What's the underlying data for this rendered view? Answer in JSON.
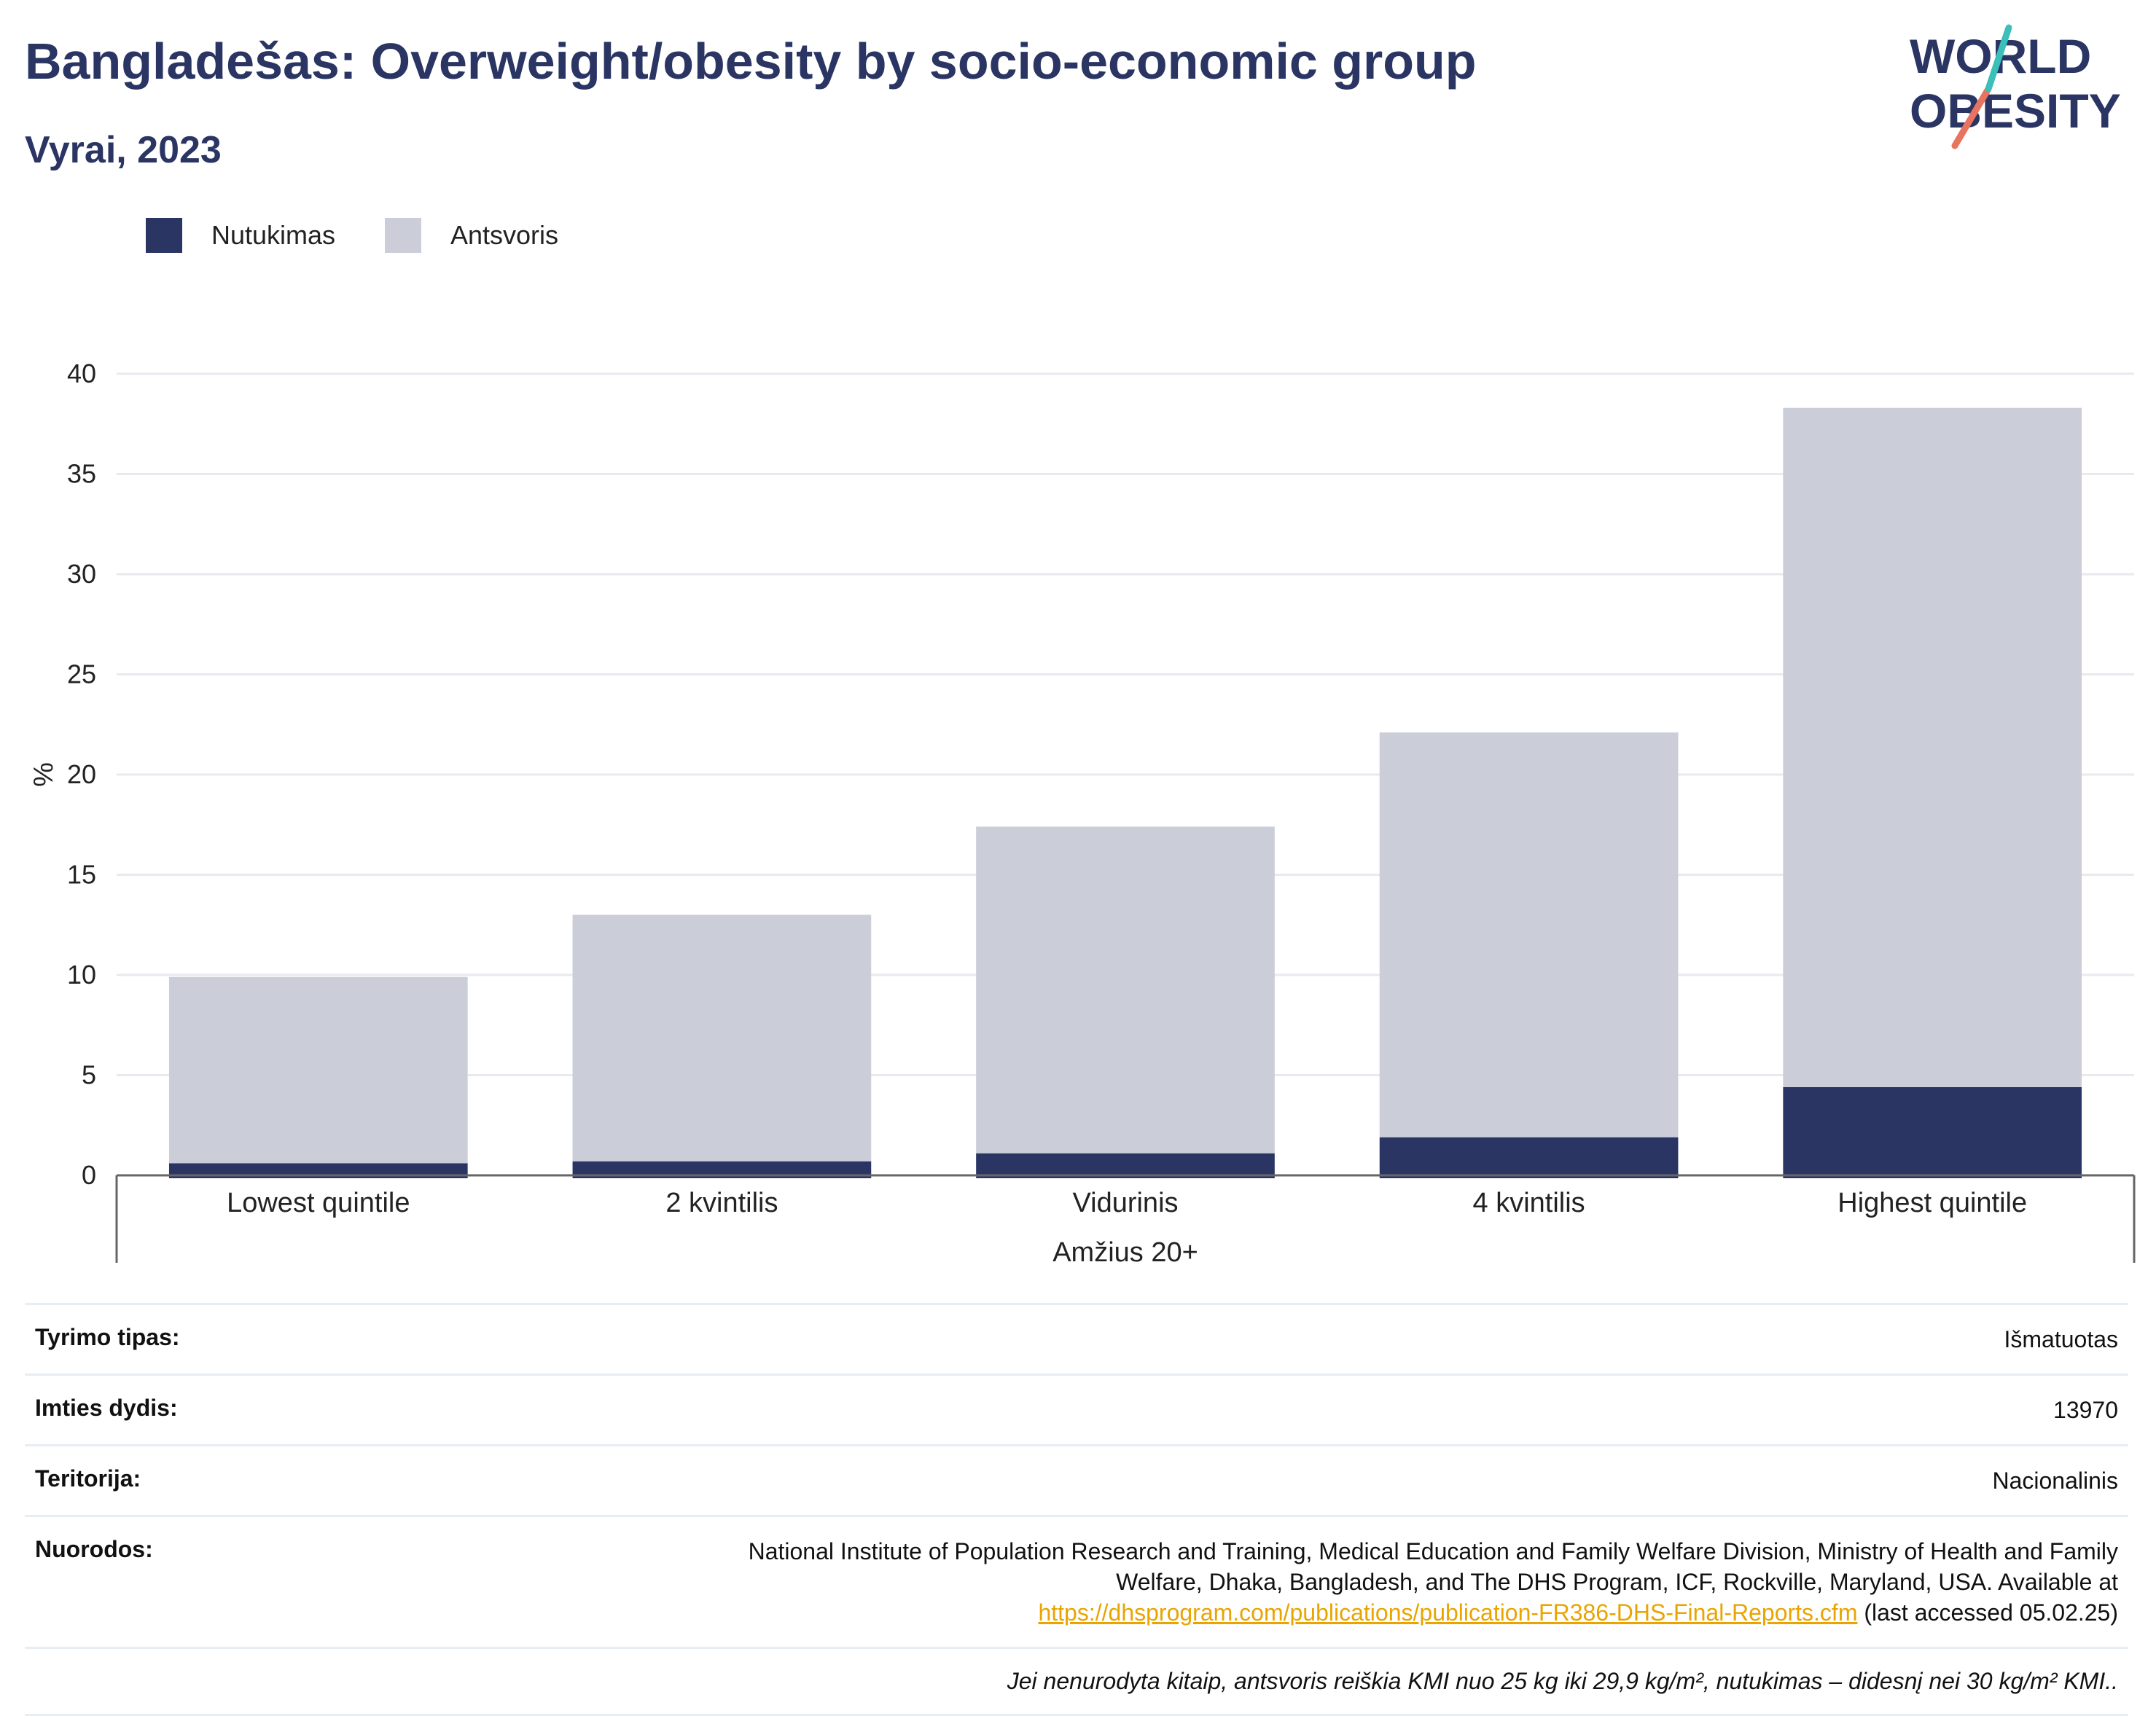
{
  "header": {
    "title": "Bangladešas: Overweight/obesity by socio-economic group",
    "subtitle": "Vyrai, 2023"
  },
  "logo": {
    "line1": "WORLD",
    "line2": "OBESITY"
  },
  "colors": {
    "obesity": "#2a3563",
    "overweight": "#cbcdd9",
    "title": "#2a3563",
    "link": "#e9a400"
  },
  "chart_data": {
    "type": "bar",
    "stacked": true,
    "categories": [
      "Lowest quintile",
      "2 kvintilis",
      "Vidurinis",
      "4 kvintilis",
      "Highest quintile"
    ],
    "series": [
      {
        "name": "Nutukimas",
        "values": [
          0.6,
          0.7,
          1.1,
          1.9,
          4.4
        ]
      },
      {
        "name": "Antsvoris",
        "values": [
          9.3,
          12.3,
          16.3,
          20.2,
          33.9
        ]
      }
    ],
    "xlabel": "Amžius 20+",
    "ylabel": "%",
    "ylim": [
      0,
      40
    ],
    "yticks": [
      0,
      5,
      10,
      15,
      20,
      25,
      30,
      35,
      40
    ],
    "grid": true,
    "legend_position": "top-left"
  },
  "meta": {
    "survey_type_label": "Tyrimo tipas:",
    "survey_type_value": "Išmatuotas",
    "sample_size_label": "Imties dydis:",
    "sample_size_value": "13970",
    "territory_label": "Teritorija:",
    "territory_value": "Nacionalinis",
    "references_label": "Nuorodos:",
    "references_line1": "National Institute of Population Research and Training, Medical Education and Family Welfare Division, Ministry of Health and Family",
    "references_line2": "Welfare, Dhaka, Bangladesh, and The DHS Program, ICF, Rockville, Maryland, USA. Available at",
    "references_link": "https://dhsprogram.com/publications/publication-FR386-DHS-Final-Reports.cfm",
    "references_tail": " (last accessed 05.02.25)",
    "note": "Jei nenurodyta kitaip, antsvoris reiškia KMI nuo 25 kg iki 29,9 kg/m², nutukimas – didesnį nei 30 kg/m² KMI.."
  }
}
